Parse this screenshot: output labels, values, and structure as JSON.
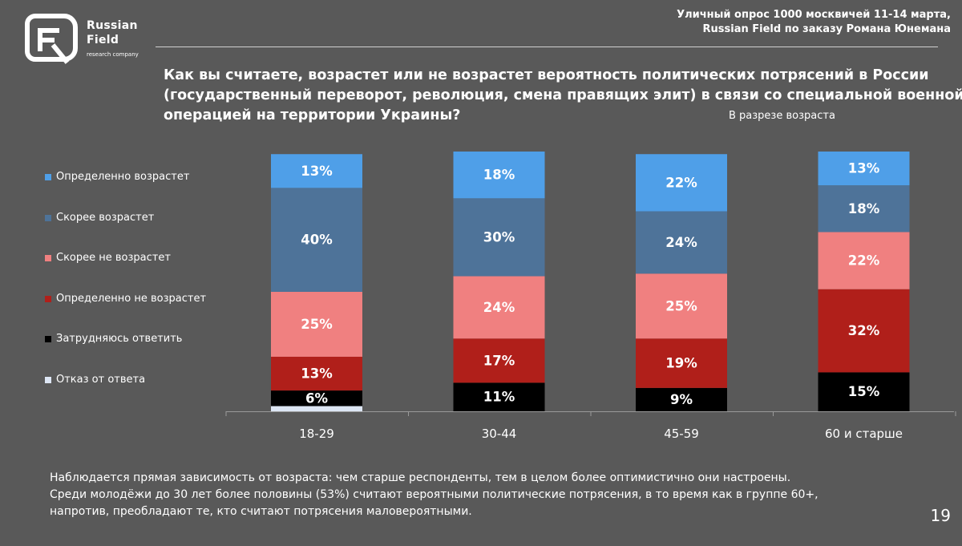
{
  "header": {
    "logo_line1": "Russian",
    "logo_line2": "Field",
    "logo_sub": "research company",
    "source_line1": "Уличный опрос 1000 москвичей 11-14 марта,",
    "source_line2": "Russian Field по заказу Романа Юнемана"
  },
  "title_lines": [
    "Как вы считаете, возрастет или не возрастет вероятность политических потрясений в России",
    "(государственный переворот, революция, смена правящих элит) в связи со специальной военной",
    "операцией на территории Украины?"
  ],
  "subtitle": "В разрезе возраста",
  "chart_data": {
    "type": "bar",
    "stacked": true,
    "categories": [
      "18-29",
      "30-44",
      "45-59",
      "60 и старше"
    ],
    "series": [
      {
        "name": "Определенно возрастет",
        "color": "#4f9fe8",
        "values": [
          13,
          18,
          22,
          13
        ],
        "labels": [
          "13%",
          "18%",
          "22%",
          "13%"
        ]
      },
      {
        "name": "Скорее возрастет",
        "color": "#4e7399",
        "values": [
          40,
          30,
          24,
          18
        ],
        "labels": [
          "40%",
          "30%",
          "24%",
          "18%"
        ]
      },
      {
        "name": "Скорее не возрастет",
        "color": "#f08080",
        "values": [
          25,
          24,
          25,
          22
        ],
        "labels": [
          "25%",
          "24%",
          "25%",
          "22%"
        ]
      },
      {
        "name": "Определенно не возрастет",
        "color": "#b01f1a",
        "values": [
          13,
          17,
          19,
          32
        ],
        "labels": [
          "13%",
          "17%",
          "19%",
          "32%"
        ]
      },
      {
        "name": "Затрудняюсь ответить",
        "color": "#000000",
        "values": [
          6,
          11,
          9,
          15
        ],
        "labels": [
          "6%",
          "11%",
          "9%",
          "15%"
        ]
      },
      {
        "name": "Отказ от ответа",
        "color": "#dde6f4",
        "values": [
          2,
          0,
          0,
          0
        ],
        "labels": [
          "",
          "",
          "",
          ""
        ]
      }
    ],
    "legend_position": "left",
    "grid": false
  },
  "note_lines": [
    "Наблюдается прямая зависимость от возраста: чем старше респонденты, тем в целом более оптимистично они настроены.",
    "Среди молодёжи до 30 лет более половины (53%) считают вероятными политические потрясения, в то время как в  группе 60+,",
    "напротив, преобладают те, кто считают потрясения маловероятными."
  ],
  "page_number": "19"
}
